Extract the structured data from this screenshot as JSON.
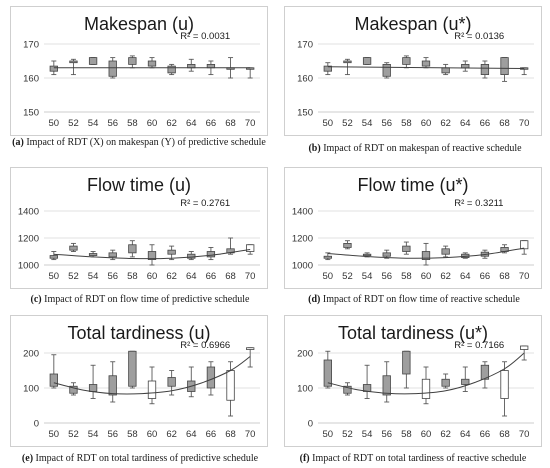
{
  "colors": {
    "box_dark": "#9e9e9e",
    "box_light": "#ffffff",
    "whisker": "#595959",
    "trend": "#404040"
  },
  "captions": [
    {
      "letter": "(a)",
      "text": "Impact of RDT (X) on makespan (Y) of predictive schedule"
    },
    {
      "letter": "(b)",
      "text": "Impact of RDT on makespan of reactive schedule"
    },
    {
      "letter": "(c)",
      "text": "Impact of RDT on flow time of predictive schedule"
    },
    {
      "letter": "(d)",
      "text": "Impact of RDT on flow time of reactive schedule"
    },
    {
      "letter": "(e)",
      "text": "Impact of RDT on total tardiness of predictive schedule"
    },
    {
      "letter": "(f)",
      "text": "Impact of RDT on total tardiness of reactive schedule"
    }
  ],
  "chart_data": [
    {
      "type": "box",
      "title": "Makespan (u)",
      "r2": "R² = 0.0031",
      "categories": [
        "50",
        "52",
        "54",
        "56",
        "58",
        "60",
        "62",
        "64",
        "66",
        "68",
        "70"
      ],
      "ylim": [
        150,
        170
      ],
      "yticks": [
        150,
        160,
        170
      ],
      "grid": true,
      "trend": "linear",
      "trend_points": [
        [
          50,
          163
        ],
        [
          70,
          163
        ]
      ],
      "boxes": [
        {
          "min": 161,
          "q1": 162,
          "q3": 163.5,
          "max": 165,
          "shade": "dark"
        },
        {
          "min": 161,
          "q1": 164.5,
          "q3": 165,
          "max": 165.5,
          "shade": "dark"
        },
        {
          "min": 164,
          "q1": 164,
          "q3": 166,
          "max": 166,
          "shade": "dark"
        },
        {
          "min": 160,
          "q1": 160.5,
          "q3": 165,
          "max": 166,
          "shade": "dark"
        },
        {
          "min": 163,
          "q1": 164,
          "q3": 166,
          "max": 166.5,
          "shade": "dark"
        },
        {
          "min": 163,
          "q1": 163.5,
          "q3": 165,
          "max": 166,
          "shade": "dark"
        },
        {
          "min": 161,
          "q1": 161.5,
          "q3": 163.5,
          "max": 164,
          "shade": "dark"
        },
        {
          "min": 162,
          "q1": 163,
          "q3": 164,
          "max": 165.5,
          "shade": "dark"
        },
        {
          "min": 161,
          "q1": 163,
          "q3": 164,
          "max": 165,
          "shade": "dark"
        },
        {
          "min": 160,
          "q1": 163,
          "q3": 163,
          "max": 166,
          "shade": "dark"
        },
        {
          "min": 160,
          "q1": 163,
          "q3": 163,
          "max": 163,
          "shade": "dark"
        }
      ]
    },
    {
      "type": "box",
      "title": "Makespan (u*)",
      "r2": "R² = 0.0136",
      "categories": [
        "50",
        "52",
        "54",
        "56",
        "58",
        "60",
        "62",
        "64",
        "66",
        "68",
        "70"
      ],
      "ylim": [
        150,
        170
      ],
      "yticks": [
        150,
        160,
        170
      ],
      "grid": true,
      "trend": "linear",
      "trend_points": [
        [
          50,
          163.3
        ],
        [
          70,
          162.8
        ]
      ],
      "boxes": [
        {
          "min": 161,
          "q1": 162,
          "q3": 163.5,
          "max": 164.5,
          "shade": "dark"
        },
        {
          "min": 161,
          "q1": 164.5,
          "q3": 165,
          "max": 165.5,
          "shade": "dark"
        },
        {
          "min": 164,
          "q1": 164,
          "q3": 166,
          "max": 166,
          "shade": "dark"
        },
        {
          "min": 160,
          "q1": 160.5,
          "q3": 164,
          "max": 164.5,
          "shade": "dark"
        },
        {
          "min": 163,
          "q1": 164,
          "q3": 166,
          "max": 166.5,
          "shade": "dark"
        },
        {
          "min": 163,
          "q1": 163.5,
          "q3": 165,
          "max": 166,
          "shade": "dark"
        },
        {
          "min": 161,
          "q1": 161.5,
          "q3": 163,
          "max": 164,
          "shade": "dark"
        },
        {
          "min": 162,
          "q1": 163,
          "q3": 164,
          "max": 165,
          "shade": "dark"
        },
        {
          "min": 160,
          "q1": 161,
          "q3": 164,
          "max": 165,
          "shade": "dark"
        },
        {
          "min": 159,
          "q1": 161,
          "q3": 166,
          "max": 166,
          "shade": "dark"
        },
        {
          "min": 161,
          "q1": 163,
          "q3": 163,
          "max": 163,
          "shade": "dark"
        }
      ]
    },
    {
      "type": "box",
      "title": "Flow time (u)",
      "r2": "R² = 0.2761",
      "categories": [
        "50",
        "52",
        "54",
        "56",
        "58",
        "60",
        "62",
        "64",
        "66",
        "68",
        "70"
      ],
      "ylim": [
        1000,
        1400
      ],
      "yticks": [
        1000,
        1200,
        1400
      ],
      "grid": true,
      "trend": "quadratic",
      "trend_points": [
        [
          50,
          1080
        ],
        [
          54,
          1060
        ],
        [
          58,
          1048
        ],
        [
          62,
          1050
        ],
        [
          66,
          1072
        ],
        [
          70,
          1115
        ]
      ],
      "boxes": [
        {
          "min": 1040,
          "q1": 1050,
          "q3": 1070,
          "max": 1100,
          "shade": "dark"
        },
        {
          "min": 1100,
          "q1": 1110,
          "q3": 1140,
          "max": 1160,
          "shade": "dark"
        },
        {
          "min": 1060,
          "q1": 1070,
          "q3": 1085,
          "max": 1100,
          "shade": "dark"
        },
        {
          "min": 1040,
          "q1": 1060,
          "q3": 1090,
          "max": 1110,
          "shade": "dark"
        },
        {
          "min": 1060,
          "q1": 1090,
          "q3": 1150,
          "max": 1180,
          "shade": "dark"
        },
        {
          "min": 1000,
          "q1": 1040,
          "q3": 1100,
          "max": 1150,
          "shade": "dark"
        },
        {
          "min": 1040,
          "q1": 1080,
          "q3": 1110,
          "max": 1140,
          "shade": "dark"
        },
        {
          "min": 1040,
          "q1": 1050,
          "q3": 1080,
          "max": 1100,
          "shade": "dark"
        },
        {
          "min": 1040,
          "q1": 1060,
          "q3": 1100,
          "max": 1130,
          "shade": "dark"
        },
        {
          "min": 1080,
          "q1": 1090,
          "q3": 1120,
          "max": 1200,
          "shade": "dark"
        },
        {
          "min": 1080,
          "q1": 1100,
          "q3": 1150,
          "max": 1150,
          "shade": "light"
        }
      ]
    },
    {
      "type": "box",
      "title": "Flow time (u*)",
      "r2": "R² = 0.3211",
      "categories": [
        "50",
        "52",
        "54",
        "56",
        "58",
        "60",
        "62",
        "64",
        "66",
        "68",
        "70"
      ],
      "ylim": [
        1000,
        1400
      ],
      "yticks": [
        1000,
        1200,
        1400
      ],
      "grid": true,
      "trend": "quadratic",
      "trend_points": [
        [
          50,
          1085
        ],
        [
          54,
          1063
        ],
        [
          58,
          1050
        ],
        [
          62,
          1055
        ],
        [
          66,
          1078
        ],
        [
          70,
          1125
        ]
      ],
      "boxes": [
        {
          "min": 1040,
          "q1": 1050,
          "q3": 1065,
          "max": 1090,
          "shade": "dark"
        },
        {
          "min": 1120,
          "q1": 1130,
          "q3": 1160,
          "max": 1180,
          "shade": "dark"
        },
        {
          "min": 1060,
          "q1": 1070,
          "q3": 1080,
          "max": 1090,
          "shade": "dark"
        },
        {
          "min": 1050,
          "q1": 1065,
          "q3": 1090,
          "max": 1110,
          "shade": "dark"
        },
        {
          "min": 1080,
          "q1": 1100,
          "q3": 1140,
          "max": 1170,
          "shade": "dark"
        },
        {
          "min": 1000,
          "q1": 1040,
          "q3": 1100,
          "max": 1160,
          "shade": "dark"
        },
        {
          "min": 1060,
          "q1": 1080,
          "q3": 1120,
          "max": 1140,
          "shade": "dark"
        },
        {
          "min": 1050,
          "q1": 1055,
          "q3": 1080,
          "max": 1090,
          "shade": "dark"
        },
        {
          "min": 1050,
          "q1": 1065,
          "q3": 1095,
          "max": 1110,
          "shade": "dark"
        },
        {
          "min": 1090,
          "q1": 1100,
          "q3": 1130,
          "max": 1150,
          "shade": "dark"
        },
        {
          "min": 1080,
          "q1": 1120,
          "q3": 1180,
          "max": 1180,
          "shade": "light"
        }
      ]
    },
    {
      "type": "box",
      "title": "Total tardiness (u)",
      "r2": "R² = 0.6966",
      "categories": [
        "50",
        "52",
        "54",
        "56",
        "58",
        "60",
        "62",
        "64",
        "66",
        "68",
        "70"
      ],
      "ylim": [
        0,
        200
      ],
      "yticks": [
        0,
        100,
        200
      ],
      "grid": true,
      "trend": "quadratic",
      "trend_points": [
        [
          50,
          115
        ],
        [
          53,
          94
        ],
        [
          56,
          84
        ],
        [
          59,
          84
        ],
        [
          62,
          92
        ],
        [
          65,
          114
        ],
        [
          68,
          150
        ],
        [
          70,
          190
        ]
      ],
      "boxes": [
        {
          "min": 100,
          "q1": 105,
          "q3": 140,
          "max": 195,
          "shade": "dark"
        },
        {
          "min": 80,
          "q1": 85,
          "q3": 105,
          "max": 115,
          "shade": "dark"
        },
        {
          "min": 70,
          "q1": 90,
          "q3": 110,
          "max": 165,
          "shade": "dark"
        },
        {
          "min": 60,
          "q1": 80,
          "q3": 135,
          "max": 175,
          "shade": "dark"
        },
        {
          "min": 100,
          "q1": 105,
          "q3": 205,
          "max": 205,
          "shade": "dark"
        },
        {
          "min": 55,
          "q1": 70,
          "q3": 120,
          "max": 160,
          "shade": "light"
        },
        {
          "min": 80,
          "q1": 105,
          "q3": 130,
          "max": 150,
          "shade": "dark"
        },
        {
          "min": 75,
          "q1": 90,
          "q3": 120,
          "max": 160,
          "shade": "dark"
        },
        {
          "min": 80,
          "q1": 100,
          "q3": 160,
          "max": 175,
          "shade": "dark"
        },
        {
          "min": 20,
          "q1": 65,
          "q3": 150,
          "max": 175,
          "shade": "light"
        },
        {
          "min": 160,
          "q1": 210,
          "q3": 215,
          "max": 215,
          "shade": "light"
        }
      ]
    },
    {
      "type": "box",
      "title": "Total tardiness (u*)",
      "r2": "R² = 0.7166",
      "categories": [
        "50",
        "52",
        "54",
        "56",
        "58",
        "60",
        "62",
        "64",
        "66",
        "68",
        "70"
      ],
      "ylim": [
        0,
        200
      ],
      "yticks": [
        0,
        100,
        200
      ],
      "grid": true,
      "trend": "quadratic",
      "trend_points": [
        [
          50,
          115
        ],
        [
          53,
          95
        ],
        [
          56,
          85
        ],
        [
          59,
          84
        ],
        [
          62,
          92
        ],
        [
          65,
          116
        ],
        [
          68,
          155
        ],
        [
          70,
          200
        ]
      ],
      "boxes": [
        {
          "min": 100,
          "q1": 105,
          "q3": 180,
          "max": 205,
          "shade": "dark"
        },
        {
          "min": 80,
          "q1": 85,
          "q3": 105,
          "max": 115,
          "shade": "dark"
        },
        {
          "min": 70,
          "q1": 90,
          "q3": 110,
          "max": 165,
          "shade": "dark"
        },
        {
          "min": 60,
          "q1": 80,
          "q3": 135,
          "max": 175,
          "shade": "dark"
        },
        {
          "min": 100,
          "q1": 140,
          "q3": 205,
          "max": 205,
          "shade": "dark"
        },
        {
          "min": 55,
          "q1": 70,
          "q3": 125,
          "max": 160,
          "shade": "light"
        },
        {
          "min": 100,
          "q1": 105,
          "q3": 125,
          "max": 140,
          "shade": "dark"
        },
        {
          "min": 90,
          "q1": 110,
          "q3": 125,
          "max": 160,
          "shade": "dark"
        },
        {
          "min": 100,
          "q1": 125,
          "q3": 165,
          "max": 175,
          "shade": "dark"
        },
        {
          "min": 20,
          "q1": 70,
          "q3": 150,
          "max": 175,
          "shade": "light"
        },
        {
          "min": 180,
          "q1": 210,
          "q3": 220,
          "max": 220,
          "shade": "light"
        }
      ]
    }
  ]
}
